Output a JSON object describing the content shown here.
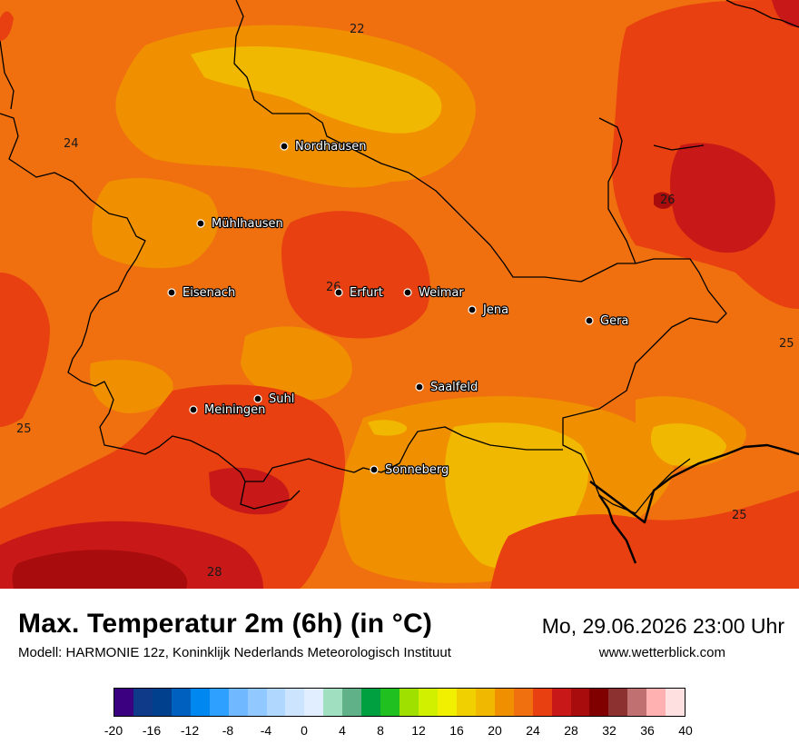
{
  "title": "Max. Temperatur 2m (6h) (in °C)",
  "model_line": "Modell: HARMONIE 12z, Koninklijk Nederlands Meteorologisch Instituut",
  "datetime": "Mo, 29.06.2026 23:00 Uhr",
  "website": "www.wetterblick.com",
  "legend": {
    "ticks": [
      "-20",
      "-16",
      "-12",
      "-8",
      "-4",
      "0",
      "4",
      "8",
      "12",
      "16",
      "20",
      "24",
      "28",
      "32",
      "36",
      "40"
    ],
    "colors": [
      "#3a0080",
      "#0f3a8a",
      "#00408c",
      "#0060c0",
      "#0088f0",
      "#2ea0ff",
      "#70b8ff",
      "#90c8ff",
      "#b0d8ff",
      "#cde4ff",
      "#e0eeff",
      "#a0e0c0",
      "#60b088",
      "#00a040",
      "#20c020",
      "#a0e000",
      "#d0f000",
      "#f0f000",
      "#f0d000",
      "#f0b800",
      "#f09000",
      "#f07010",
      "#e84010",
      "#c81818",
      "#a80c0c",
      "#800000",
      "#8c3030",
      "#c07070",
      "#ffb0b0",
      "#ffe0e0"
    ]
  },
  "cities": [
    {
      "name": "Nordhausen"
    },
    {
      "name": "Mühlhausen"
    },
    {
      "name": "Eisenach"
    },
    {
      "name": "Erfurt"
    },
    {
      "name": "Weimar"
    },
    {
      "name": "Jena"
    },
    {
      "name": "Gera"
    },
    {
      "name": "Saalfeld"
    },
    {
      "name": "Suhl"
    },
    {
      "name": "Meiningen"
    },
    {
      "name": "Sonneberg"
    }
  ],
  "isolines": [
    "22",
    "24",
    "26",
    "26",
    "25",
    "25",
    "25",
    "28"
  ]
}
